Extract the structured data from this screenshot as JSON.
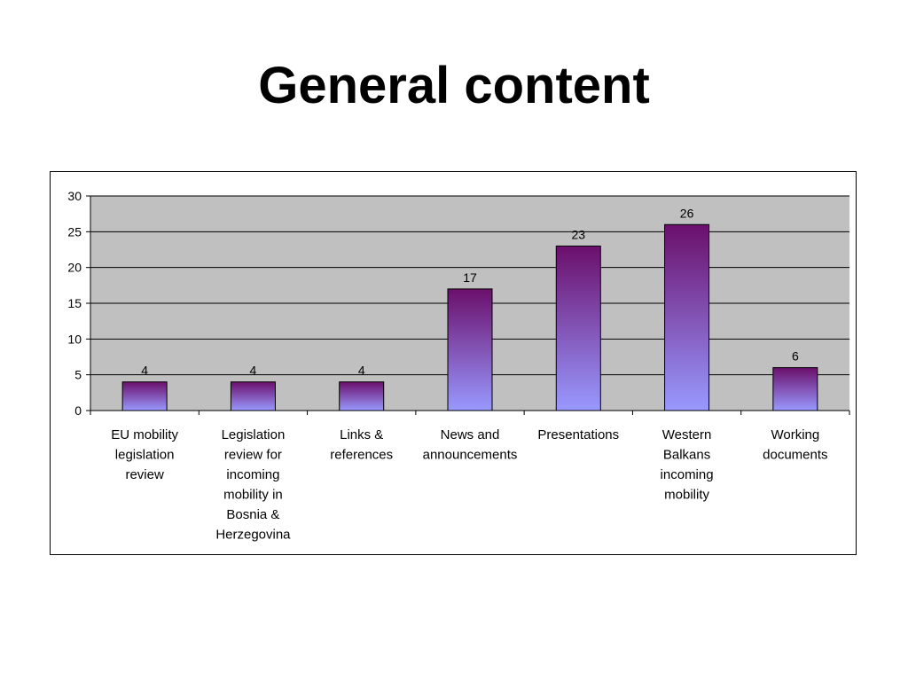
{
  "slide": {
    "title": "General content"
  },
  "colors": {
    "plot_background": "#c0c0c0",
    "bar_top": "#6b0f6b",
    "bar_bottom": "#9999ff",
    "gridline": "#000000"
  },
  "chart_data": {
    "type": "bar",
    "title": "",
    "xlabel": "",
    "ylabel": "",
    "ylim": [
      0,
      30
    ],
    "yticks": [
      0,
      5,
      10,
      15,
      20,
      25,
      30
    ],
    "grid": true,
    "legend": "none",
    "categories": [
      "EU mobility legislation review",
      "Legislation review for incoming mobility in Bosnia & Herzegovina",
      "Links & references",
      "News and announcements",
      "Presentations",
      "Western Balkans incoming mobility",
      "Working documents"
    ],
    "category_lines": [
      [
        "EU mobility",
        "legislation",
        "review"
      ],
      [
        "Legislation",
        "review for",
        "incoming",
        "mobility in",
        "Bosnia &",
        "Herzegovina"
      ],
      [
        "Links &",
        "references"
      ],
      [
        "News and",
        "announcements"
      ],
      [
        "Presentations"
      ],
      [
        "Western",
        "Balkans",
        "incoming",
        "mobility"
      ],
      [
        "Working",
        "documents"
      ]
    ],
    "values": [
      4,
      4,
      4,
      17,
      23,
      26,
      6
    ],
    "data_labels": [
      "4",
      "4",
      "4",
      "17",
      "23",
      "26",
      "6"
    ]
  }
}
